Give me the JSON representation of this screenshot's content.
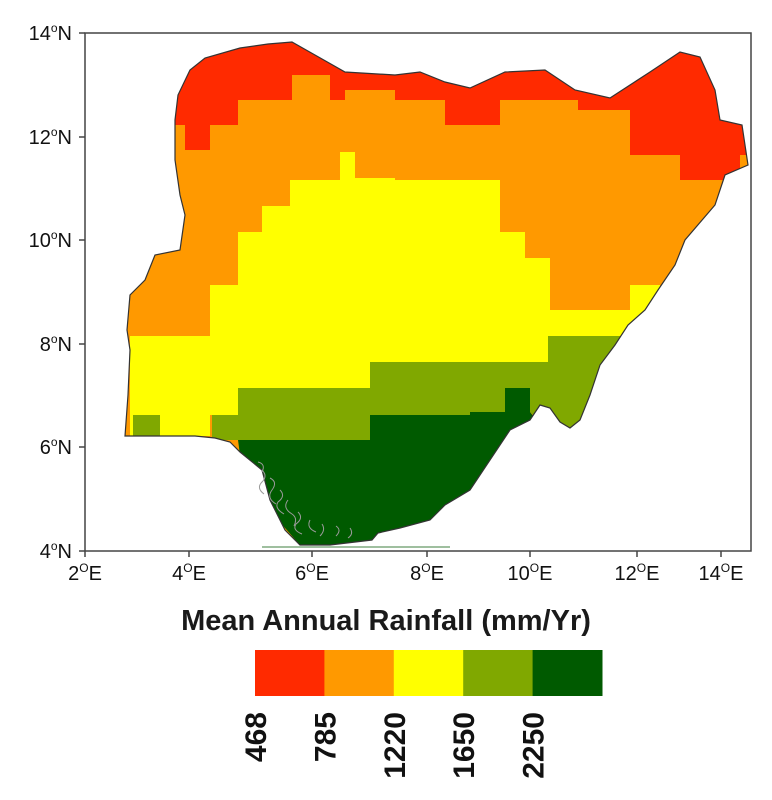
{
  "map": {
    "lat_labels": [
      {
        "deg": "14",
        "sup": "o",
        "hem": "N"
      },
      {
        "deg": "12",
        "sup": "o",
        "hem": "N"
      },
      {
        "deg": "10",
        "sup": "o",
        "hem": "N"
      },
      {
        "deg": "8",
        "sup": "o",
        "hem": "N"
      },
      {
        "deg": "6",
        "sup": "o",
        "hem": "N"
      },
      {
        "deg": "4",
        "sup": "o",
        "hem": "N"
      }
    ],
    "lon_labels": [
      {
        "deg": "2",
        "sup": "O",
        "hem": "E"
      },
      {
        "deg": "4",
        "sup": "O",
        "hem": "E"
      },
      {
        "deg": "6",
        "sup": "O",
        "hem": "E"
      },
      {
        "deg": "8",
        "sup": "O",
        "hem": "E"
      },
      {
        "deg": "10",
        "sup": "O",
        "hem": "E"
      },
      {
        "deg": "12",
        "sup": "O",
        "hem": "E"
      },
      {
        "deg": "14",
        "sup": "O",
        "hem": "E"
      }
    ],
    "zone_colors": {
      "zone1": "#ff2a00",
      "zone2": "#ff9900",
      "zone3": "#ffff00",
      "zone4": "#80a800",
      "zone5": "#005a00"
    }
  },
  "legend": {
    "title": "Mean Annual Rainfall (mm/Yr)",
    "classes": [
      {
        "color": "#ff2a00",
        "label": "468"
      },
      {
        "color": "#ff9900",
        "label": "785"
      },
      {
        "color": "#ffff00",
        "label": "1220"
      },
      {
        "color": "#80a800",
        "label": "1650"
      },
      {
        "color": "#005a00",
        "label": "2250"
      }
    ]
  }
}
